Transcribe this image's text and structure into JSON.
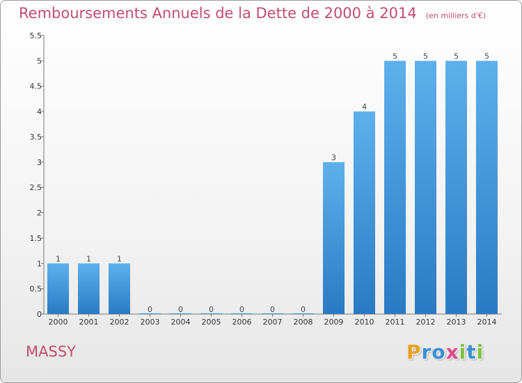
{
  "chart_data": {
    "type": "bar",
    "title": "Remboursements Annuels de la Dette de 2000 à 2014",
    "subtitle": "(en milliers d'€)",
    "xlabel": "",
    "ylabel": "",
    "categories": [
      "2000",
      "2001",
      "2002",
      "2003",
      "2004",
      "2005",
      "2006",
      "2007",
      "2008",
      "2009",
      "2010",
      "2011",
      "2012",
      "2013",
      "2014"
    ],
    "values": [
      1,
      1,
      1,
      0,
      0,
      0,
      0,
      0,
      0,
      3,
      4,
      5,
      5,
      5,
      5
    ],
    "ylim": [
      0,
      5.5
    ],
    "yticks": [
      "0",
      "0.5",
      "1",
      "1.5",
      "2",
      "2.5",
      "3",
      "3.5",
      "4",
      "4.5",
      "5",
      "5.5"
    ],
    "grid": false,
    "bar_color": "#3d95d8",
    "title_color": "#c24d6e"
  },
  "footer": {
    "city": "MASSY"
  },
  "logo": {
    "letters": [
      "P",
      "r",
      "o",
      "x",
      "i",
      "t",
      "i"
    ],
    "colors": [
      "#e8a020",
      "#3a8ed4",
      "#3a8ed4",
      "#e04a8a",
      "#7cc242",
      "#3a8ed4",
      "#7cc242"
    ]
  }
}
